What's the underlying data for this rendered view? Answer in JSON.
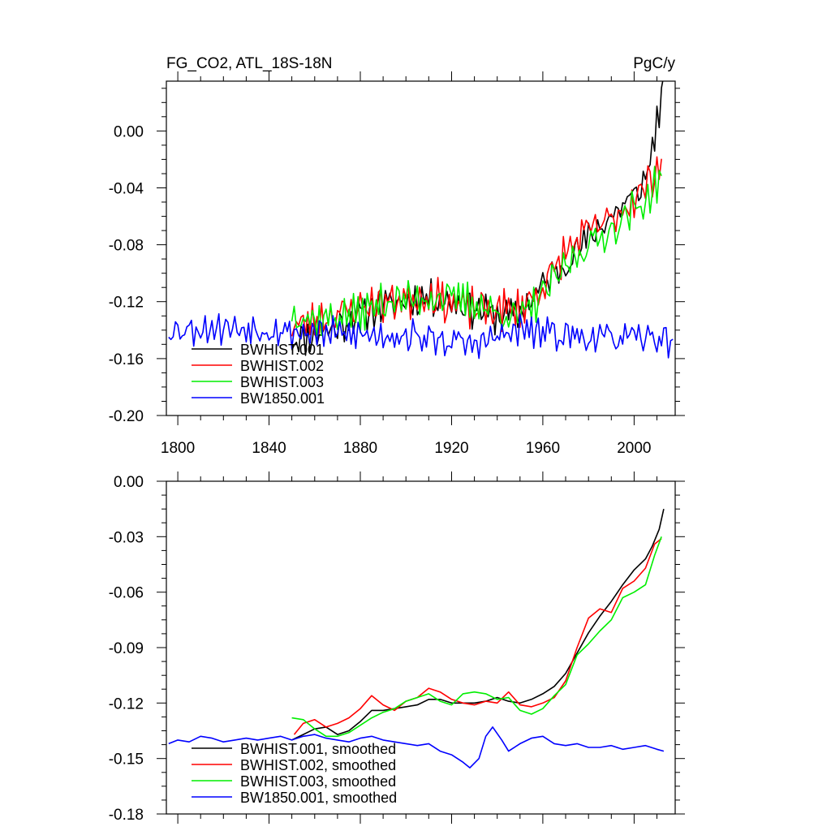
{
  "chart_data": [
    {
      "type": "line",
      "title": "FG_CO2, ATL_18S-18N",
      "units": "PgC/y",
      "xlabel": "",
      "ylabel": "",
      "xlim": [
        1795,
        2018
      ],
      "ylim": [
        -0.2,
        0.035
      ],
      "xticks": [
        1800,
        1840,
        1880,
        1920,
        1960,
        2000
      ],
      "yticks": [
        -0.2,
        -0.16,
        -0.12,
        -0.08,
        -0.04,
        0.0
      ],
      "ytick_labels": [
        "-0.20",
        "-0.16",
        "-0.12",
        "-0.08",
        "-0.04",
        "0.00"
      ],
      "legend_position": "lower-left",
      "series": [
        {
          "name": "BWHIST.001",
          "color": "#000000",
          "kind": "annual",
          "x_start": 1850,
          "anchors": [
            [
              1850,
              -0.148
            ],
            [
              1870,
              -0.138
            ],
            [
              1880,
              -0.128
            ],
            [
              1890,
              -0.123
            ],
            [
              1910,
              -0.117
            ],
            [
              1925,
              -0.122
            ],
            [
              1940,
              -0.13
            ],
            [
              1950,
              -0.128
            ],
            [
              1960,
              -0.108
            ],
            [
              1970,
              -0.093
            ],
            [
              1980,
              -0.075
            ],
            [
              1990,
              -0.06
            ],
            [
              2000,
              -0.045
            ],
            [
              2005,
              -0.035
            ],
            [
              2013,
              0.03
            ]
          ],
          "amplitude": 0.016,
          "seed": 11
        },
        {
          "name": "BWHIST.002",
          "color": "#ff0000",
          "kind": "annual",
          "x_start": 1850,
          "anchors": [
            [
              1850,
              -0.138
            ],
            [
              1860,
              -0.133
            ],
            [
              1880,
              -0.124
            ],
            [
              1890,
              -0.12
            ],
            [
              1910,
              -0.116
            ],
            [
              1925,
              -0.124
            ],
            [
              1940,
              -0.126
            ],
            [
              1950,
              -0.125
            ],
            [
              1960,
              -0.11
            ],
            [
              1970,
              -0.085
            ],
            [
              1980,
              -0.07
            ],
            [
              1990,
              -0.062
            ],
            [
              2000,
              -0.048
            ],
            [
              2005,
              -0.04
            ],
            [
              2012,
              -0.02
            ]
          ],
          "amplitude": 0.017,
          "seed": 23
        },
        {
          "name": "BWHIST.003",
          "color": "#00ee00",
          "kind": "annual",
          "x_start": 1850,
          "anchors": [
            [
              1850,
              -0.128
            ],
            [
              1860,
              -0.133
            ],
            [
              1880,
              -0.128
            ],
            [
              1890,
              -0.12
            ],
            [
              1910,
              -0.117
            ],
            [
              1925,
              -0.118
            ],
            [
              1940,
              -0.128
            ],
            [
              1950,
              -0.132
            ],
            [
              1960,
              -0.115
            ],
            [
              1970,
              -0.095
            ],
            [
              1980,
              -0.08
            ],
            [
              1990,
              -0.07
            ],
            [
              2000,
              -0.055
            ],
            [
              2005,
              -0.05
            ],
            [
              2012,
              -0.03
            ]
          ],
          "amplitude": 0.016,
          "seed": 37
        },
        {
          "name": "BW1850.001",
          "color": "#0000ff",
          "kind": "annual",
          "x_start": 1796,
          "anchors": [
            [
              1796,
              -0.14
            ],
            [
              1820,
              -0.138
            ],
            [
              1860,
              -0.142
            ],
            [
              1900,
              -0.144
            ],
            [
              1930,
              -0.15
            ],
            [
              1950,
              -0.14
            ],
            [
              1980,
              -0.145
            ],
            [
              2017,
              -0.146
            ]
          ],
          "amplitude": 0.014,
          "seed": 53
        }
      ]
    },
    {
      "type": "line",
      "title": "",
      "xlabel": "",
      "ylabel": "",
      "xlim": [
        1795,
        2018
      ],
      "ylim": [
        -0.18,
        0.0
      ],
      "xticks": [
        1800,
        1840,
        1880,
        1920,
        1960,
        2000
      ],
      "yticks": [
        -0.18,
        -0.15,
        -0.12,
        -0.09,
        -0.06,
        -0.03,
        0.0
      ],
      "ytick_labels": [
        "-0.18",
        "-0.15",
        "-0.12",
        "-0.09",
        "-0.06",
        "-0.03",
        "0.00"
      ],
      "legend_position": "lower-left",
      "series": [
        {
          "name": "BWHIST.001, smoothed",
          "color": "#000000",
          "points": [
            [
              1850,
              -0.14
            ],
            [
              1855,
              -0.137
            ],
            [
              1860,
              -0.134
            ],
            [
              1865,
              -0.133
            ],
            [
              1870,
              -0.137
            ],
            [
              1875,
              -0.135
            ],
            [
              1880,
              -0.13
            ],
            [
              1885,
              -0.124
            ],
            [
              1890,
              -0.124
            ],
            [
              1895,
              -0.123
            ],
            [
              1900,
              -0.122
            ],
            [
              1905,
              -0.121
            ],
            [
              1910,
              -0.118
            ],
            [
              1915,
              -0.118
            ],
            [
              1920,
              -0.12
            ],
            [
              1925,
              -0.12
            ],
            [
              1930,
              -0.12
            ],
            [
              1935,
              -0.119
            ],
            [
              1940,
              -0.117
            ],
            [
              1945,
              -0.119
            ],
            [
              1950,
              -0.12
            ],
            [
              1955,
              -0.118
            ],
            [
              1960,
              -0.115
            ],
            [
              1965,
              -0.111
            ],
            [
              1970,
              -0.104
            ],
            [
              1975,
              -0.093
            ],
            [
              1980,
              -0.082
            ],
            [
              1985,
              -0.073
            ],
            [
              1990,
              -0.065
            ],
            [
              1995,
              -0.056
            ],
            [
              2000,
              -0.048
            ],
            [
              2005,
              -0.042
            ],
            [
              2008,
              -0.035
            ],
            [
              2011,
              -0.026
            ],
            [
              2013,
              -0.015
            ]
          ]
        },
        {
          "name": "BWHIST.002, smoothed",
          "color": "#ff0000",
          "points": [
            [
              1851,
              -0.137
            ],
            [
              1855,
              -0.131
            ],
            [
              1860,
              -0.129
            ],
            [
              1865,
              -0.133
            ],
            [
              1870,
              -0.131
            ],
            [
              1875,
              -0.128
            ],
            [
              1880,
              -0.123
            ],
            [
              1885,
              -0.116
            ],
            [
              1890,
              -0.121
            ],
            [
              1895,
              -0.124
            ],
            [
              1900,
              -0.119
            ],
            [
              1905,
              -0.117
            ],
            [
              1910,
              -0.112
            ],
            [
              1915,
              -0.114
            ],
            [
              1920,
              -0.118
            ],
            [
              1925,
              -0.12
            ],
            [
              1930,
              -0.121
            ],
            [
              1935,
              -0.119
            ],
            [
              1940,
              -0.12
            ],
            [
              1945,
              -0.114
            ],
            [
              1950,
              -0.121
            ],
            [
              1955,
              -0.122
            ],
            [
              1960,
              -0.12
            ],
            [
              1965,
              -0.117
            ],
            [
              1970,
              -0.108
            ],
            [
              1975,
              -0.09
            ],
            [
              1980,
              -0.074
            ],
            [
              1985,
              -0.069
            ],
            [
              1990,
              -0.071
            ],
            [
              1995,
              -0.058
            ],
            [
              2000,
              -0.054
            ],
            [
              2005,
              -0.047
            ],
            [
              2009,
              -0.034
            ],
            [
              2012,
              -0.031
            ]
          ]
        },
        {
          "name": "BWHIST.003, smoothed",
          "color": "#00ee00",
          "points": [
            [
              1850,
              -0.128
            ],
            [
              1855,
              -0.129
            ],
            [
              1860,
              -0.134
            ],
            [
              1865,
              -0.138
            ],
            [
              1870,
              -0.138
            ],
            [
              1875,
              -0.136
            ],
            [
              1880,
              -0.132
            ],
            [
              1885,
              -0.128
            ],
            [
              1890,
              -0.125
            ],
            [
              1895,
              -0.123
            ],
            [
              1900,
              -0.119
            ],
            [
              1905,
              -0.117
            ],
            [
              1910,
              -0.115
            ],
            [
              1915,
              -0.119
            ],
            [
              1920,
              -0.121
            ],
            [
              1925,
              -0.115
            ],
            [
              1930,
              -0.114
            ],
            [
              1935,
              -0.115
            ],
            [
              1940,
              -0.118
            ],
            [
              1945,
              -0.117
            ],
            [
              1950,
              -0.124
            ],
            [
              1955,
              -0.126
            ],
            [
              1960,
              -0.123
            ],
            [
              1965,
              -0.116
            ],
            [
              1970,
              -0.11
            ],
            [
              1975,
              -0.094
            ],
            [
              1980,
              -0.088
            ],
            [
              1985,
              -0.081
            ],
            [
              1990,
              -0.075
            ],
            [
              1995,
              -0.063
            ],
            [
              2000,
              -0.06
            ],
            [
              2005,
              -0.056
            ],
            [
              2009,
              -0.04
            ],
            [
              2012,
              -0.03
            ]
          ]
        },
        {
          "name": "BW1850.001, smoothed",
          "color": "#0000ff",
          "points": [
            [
              1796,
              -0.142
            ],
            [
              1800,
              -0.14
            ],
            [
              1805,
              -0.141
            ],
            [
              1810,
              -0.138
            ],
            [
              1815,
              -0.139
            ],
            [
              1820,
              -0.141
            ],
            [
              1825,
              -0.14
            ],
            [
              1830,
              -0.139
            ],
            [
              1835,
              -0.14
            ],
            [
              1840,
              -0.139
            ],
            [
              1845,
              -0.138
            ],
            [
              1850,
              -0.14
            ],
            [
              1855,
              -0.138
            ],
            [
              1860,
              -0.137
            ],
            [
              1865,
              -0.139
            ],
            [
              1870,
              -0.14
            ],
            [
              1875,
              -0.141
            ],
            [
              1880,
              -0.139
            ],
            [
              1885,
              -0.138
            ],
            [
              1890,
              -0.14
            ],
            [
              1895,
              -0.141
            ],
            [
              1900,
              -0.142
            ],
            [
              1905,
              -0.143
            ],
            [
              1910,
              -0.142
            ],
            [
              1915,
              -0.146
            ],
            [
              1920,
              -0.148
            ],
            [
              1925,
              -0.152
            ],
            [
              1928,
              -0.155
            ],
            [
              1932,
              -0.15
            ],
            [
              1935,
              -0.138
            ],
            [
              1938,
              -0.133
            ],
            [
              1942,
              -0.14
            ],
            [
              1945,
              -0.146
            ],
            [
              1950,
              -0.142
            ],
            [
              1955,
              -0.139
            ],
            [
              1960,
              -0.138
            ],
            [
              1965,
              -0.142
            ],
            [
              1970,
              -0.143
            ],
            [
              1975,
              -0.142
            ],
            [
              1980,
              -0.144
            ],
            [
              1985,
              -0.144
            ],
            [
              1990,
              -0.143
            ],
            [
              1995,
              -0.145
            ],
            [
              2000,
              -0.144
            ],
            [
              2005,
              -0.143
            ],
            [
              2010,
              -0.145
            ],
            [
              2013,
              -0.146
            ]
          ]
        }
      ]
    }
  ]
}
